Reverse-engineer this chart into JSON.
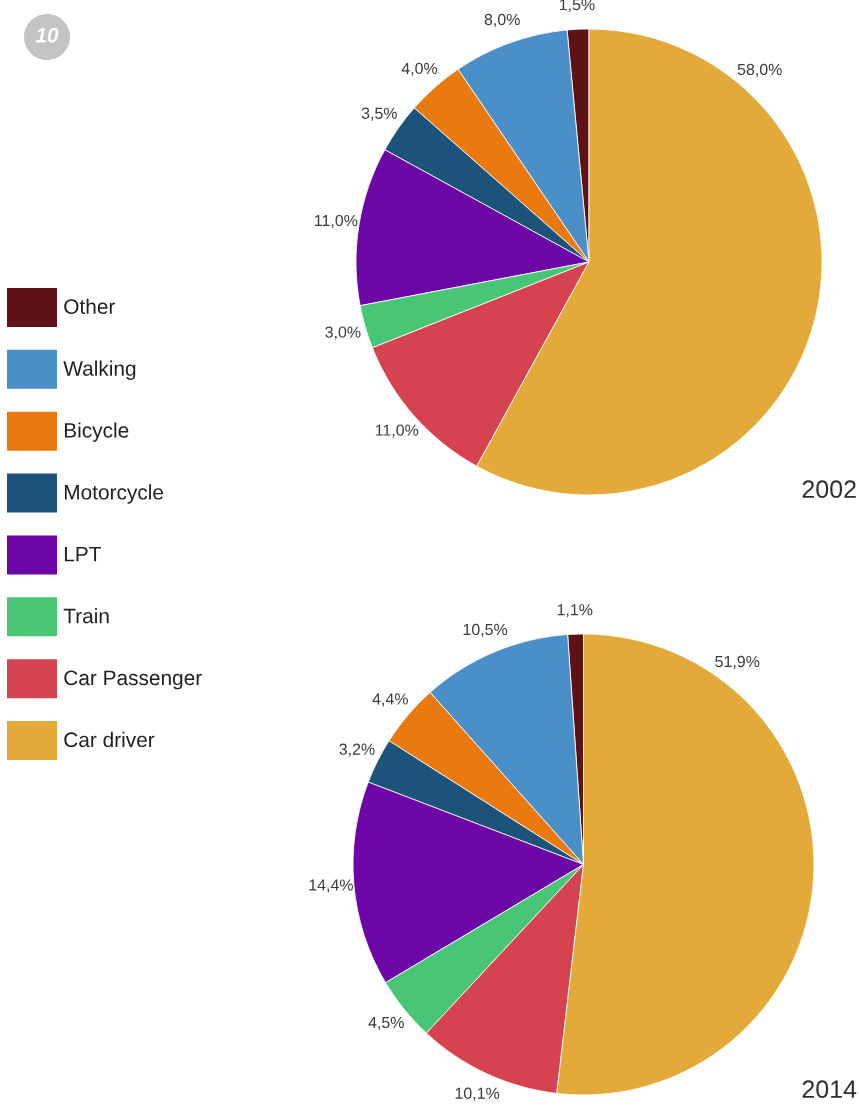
{
  "chart_data": {
    "type": "pie",
    "categories": [
      "Other",
      "Walking",
      "Bicycle",
      "Motorcycle",
      "LPT",
      "Train",
      "Car Passenger",
      "Car driver"
    ],
    "colors": [
      "#5e1216",
      "#4a8fc7",
      "#ea7a10",
      "#1b537a",
      "#6c06a6",
      "#48c676",
      "#d64350",
      "#e4aa39"
    ],
    "series": [
      {
        "name": "2002",
        "values": [
          1.5,
          8.0,
          4.0,
          3.5,
          11.0,
          3.0,
          11.0,
          58.0
        ],
        "value_labels": [
          "1,5%",
          "8,0%",
          "4,0%",
          "3,5%",
          "11,0%",
          "3,0%",
          "11,0%",
          "58,0%"
        ]
      },
      {
        "name": "2014",
        "values": [
          1.1,
          10.5,
          4.4,
          3.2,
          14.4,
          4.5,
          10.1,
          51.9
        ],
        "value_labels": [
          "1,1%",
          "10,5%",
          "4,4%",
          "3,2%",
          "14,4%",
          "4,5%",
          "10,1%",
          "51,9%"
        ]
      }
    ],
    "legend": "left",
    "annotations": [
      "10"
    ]
  }
}
